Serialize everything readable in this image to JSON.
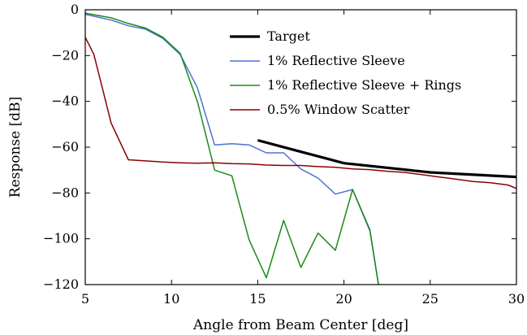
{
  "chart_data": {
    "type": "line",
    "xlabel": "Angle from Beam Center [deg]",
    "ylabel": "Response [dB]",
    "xlim": [
      5,
      30
    ],
    "ylim": [
      -120,
      0
    ],
    "xticks": [
      5,
      10,
      15,
      20,
      25,
      30
    ],
    "yticks": [
      0,
      -20,
      -40,
      -60,
      -80,
      -100,
      -120
    ],
    "xtick_labels": [
      "5",
      "10",
      "15",
      "20",
      "25",
      "30"
    ],
    "ytick_labels": [
      "0",
      "−20",
      "−40",
      "−60",
      "−80",
      "−100",
      "−120"
    ],
    "grid": false,
    "legend_position": "upper-right",
    "series": [
      {
        "name": "Target",
        "color": "#000000",
        "x": [
          15,
          17,
          20,
          25,
          30
        ],
        "y": [
          -57,
          -61,
          -67,
          -71,
          -73
        ]
      },
      {
        "name": "1% Reflective Sleeve",
        "color": "#4c72d0",
        "x": [
          5,
          6.5,
          7.5,
          8.5,
          9.5,
          10.5,
          11.5,
          12.5,
          13.5,
          14.5,
          15.5,
          16.5,
          17.5,
          18.5,
          19.5,
          20.5,
          21.5,
          22
        ],
        "y": [
          -2,
          -4.5,
          -7,
          -8.5,
          -12.5,
          -19.5,
          -34,
          -59,
          -58.5,
          -59,
          -62.5,
          -62.5,
          -69.5,
          -73.5,
          -80.5,
          -78.5,
          -96,
          -120
        ]
      },
      {
        "name": "1% Reflective Sleeve + Rings",
        "color": "#1a8a1a",
        "x": [
          5,
          6.5,
          7.5,
          8.5,
          9.5,
          10.5,
          11.5,
          12.5,
          13.5,
          14.5,
          15.5,
          16.5,
          17.5,
          18.5,
          19.5,
          20.5,
          21.5,
          22
        ],
        "y": [
          -1.5,
          -3.5,
          -6,
          -8,
          -12,
          -19,
          -40,
          -70,
          -72.5,
          -100.5,
          -117,
          -92,
          -112.5,
          -97.5,
          -105,
          -78.5,
          -96.5,
          -120
        ]
      },
      {
        "name": "0.5% Window Scatter",
        "color": "#8b0000",
        "x": [
          5,
          5.5,
          6.5,
          7.5,
          8.5,
          9.5,
          10.5,
          11.5,
          12.5,
          13.5,
          14.5,
          15.5,
          16.5,
          17.5,
          18.5,
          19.5,
          20.5,
          21.5,
          22.5,
          23.5,
          24.5,
          25.5,
          26.5,
          27.5,
          28.5,
          29.5,
          30
        ],
        "y": [
          -12,
          -19.5,
          -49.5,
          -65.5,
          -66,
          -66.5,
          -66.8,
          -67,
          -66.8,
          -67.2,
          -67.3,
          -67.8,
          -68,
          -68,
          -68.5,
          -68.8,
          -69.5,
          -69.8,
          -70.5,
          -71,
          -72,
          -73,
          -74,
          -75,
          -75.5,
          -76.5,
          -78
        ]
      }
    ]
  }
}
